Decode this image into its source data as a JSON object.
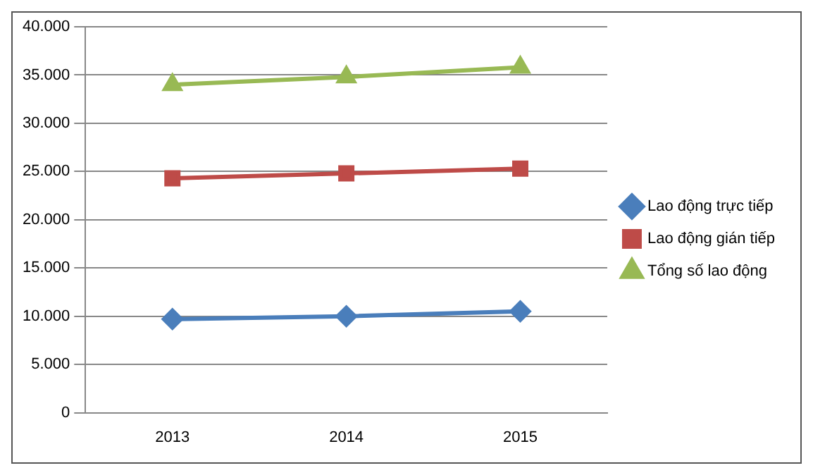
{
  "chart_data": {
    "type": "line",
    "categories": [
      "2013",
      "2014",
      "2015"
    ],
    "series": [
      {
        "name": "Lao động trực tiếp",
        "color": "#4a7ebb",
        "marker": "diamond",
        "values": [
          9700,
          10000,
          10500
        ]
      },
      {
        "name": "Lao động gián tiếp",
        "color": "#be4b48",
        "marker": "square",
        "values": [
          24300,
          24800,
          25300
        ]
      },
      {
        "name": "Tổng số lao động",
        "color": "#98b954",
        "marker": "triangle",
        "values": [
          34000,
          34800,
          35800
        ]
      }
    ],
    "ylim": [
      0,
      40000
    ],
    "yticks": [
      {
        "value": 0,
        "label": "0"
      },
      {
        "value": 5000,
        "label": "5.000"
      },
      {
        "value": 10000,
        "label": "10.000"
      },
      {
        "value": 15000,
        "label": "15.000"
      },
      {
        "value": 20000,
        "label": "20.000"
      },
      {
        "value": 25000,
        "label": "25.000"
      },
      {
        "value": 30000,
        "label": "30.000"
      },
      {
        "value": 35000,
        "label": "35.000"
      },
      {
        "value": 40000,
        "label": "40.000"
      }
    ],
    "grid": "y",
    "legend": "right",
    "line_style": "solid"
  }
}
